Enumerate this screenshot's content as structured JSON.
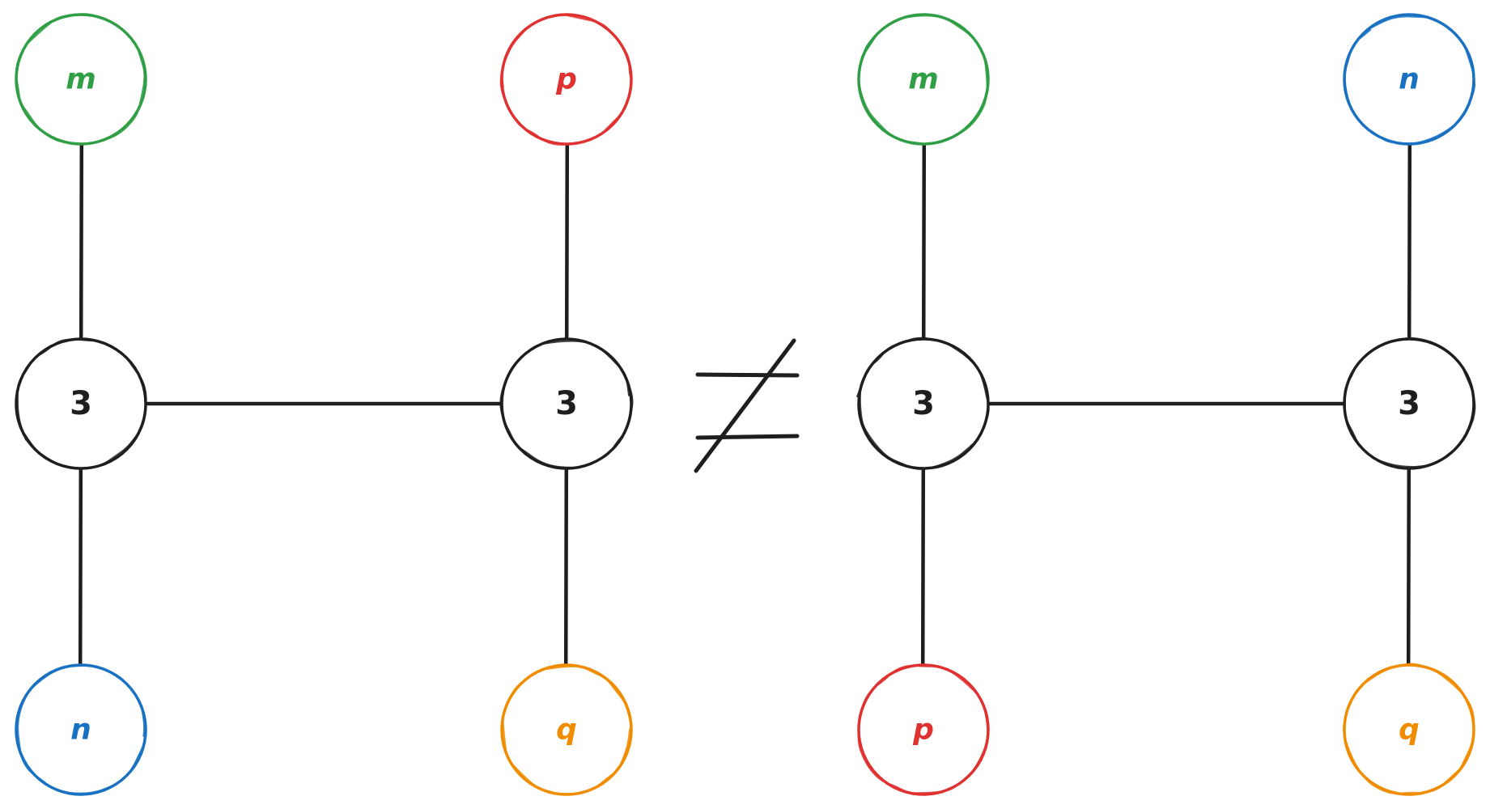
{
  "colors": {
    "ink": "#1e1e1e",
    "green": "#2f9e44",
    "red": "#e03131",
    "blue": "#1971c2",
    "orange": "#f08c00"
  },
  "relation": {
    "symbol": "≠",
    "meaning": "not equal"
  },
  "graphs": [
    {
      "id": "left-graph",
      "inner": [
        {
          "id": "a",
          "label": "3"
        },
        {
          "id": "b",
          "label": "3"
        }
      ],
      "outer": [
        {
          "id": "m",
          "label": "m",
          "color": "green",
          "attached_to": "a",
          "side": "top"
        },
        {
          "id": "n",
          "label": "n",
          "color": "blue",
          "attached_to": "a",
          "side": "bottom"
        },
        {
          "id": "p",
          "label": "p",
          "color": "red",
          "attached_to": "b",
          "side": "top"
        },
        {
          "id": "q",
          "label": "q",
          "color": "orange",
          "attached_to": "b",
          "side": "bottom"
        }
      ],
      "edges": [
        [
          "a",
          "b"
        ],
        [
          "a",
          "m"
        ],
        [
          "a",
          "n"
        ],
        [
          "b",
          "p"
        ],
        [
          "b",
          "q"
        ]
      ]
    },
    {
      "id": "right-graph",
      "inner": [
        {
          "id": "a",
          "label": "3"
        },
        {
          "id": "b",
          "label": "3"
        }
      ],
      "outer": [
        {
          "id": "m",
          "label": "m",
          "color": "green",
          "attached_to": "a",
          "side": "top"
        },
        {
          "id": "p",
          "label": "p",
          "color": "red",
          "attached_to": "a",
          "side": "bottom"
        },
        {
          "id": "n",
          "label": "n",
          "color": "blue",
          "attached_to": "b",
          "side": "top"
        },
        {
          "id": "q",
          "label": "q",
          "color": "orange",
          "attached_to": "b",
          "side": "bottom"
        }
      ],
      "edges": [
        [
          "a",
          "b"
        ],
        [
          "a",
          "m"
        ],
        [
          "a",
          "p"
        ],
        [
          "b",
          "n"
        ],
        [
          "b",
          "q"
        ]
      ]
    }
  ]
}
